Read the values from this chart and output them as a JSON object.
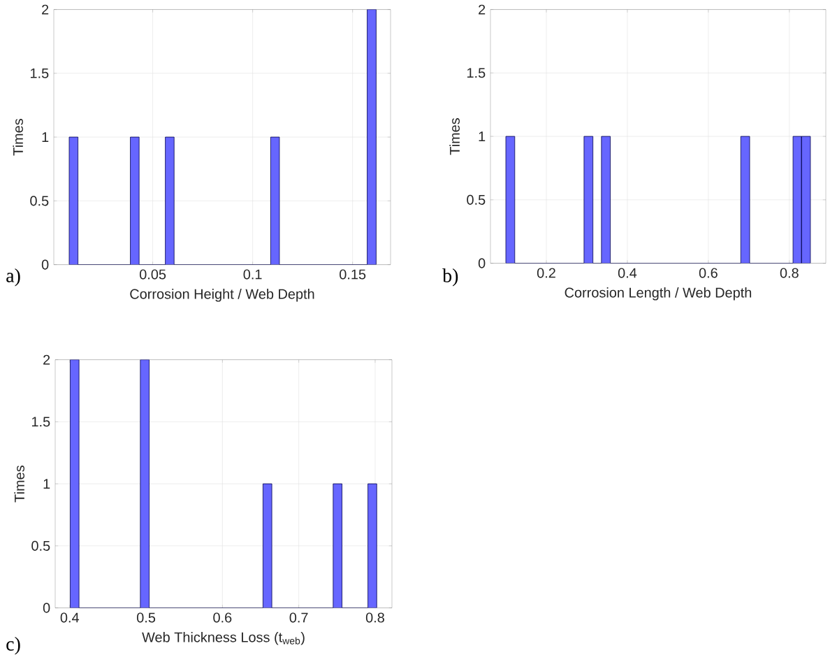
{
  "chart_data": [
    {
      "type": "histogram",
      "xlabel": "Corrosion Height / Web Depth",
      "ylabel": "Times",
      "annotations": [
        "a)"
      ],
      "color": "#6666ff",
      "bins": [
        0.0082,
        0.0126,
        0.0388,
        0.0432,
        0.0563,
        0.0607,
        0.109,
        0.1134,
        0.1573,
        0.1618
      ],
      "values": [
        1,
        0,
        1,
        0,
        1,
        0,
        1,
        0,
        2
      ],
      "xlim": [
        0.0005,
        0.169
      ],
      "xticks": [
        0.05,
        0.1,
        0.15
      ],
      "ylim": [
        0,
        2
      ],
      "yticks": [
        0,
        0.5,
        1,
        1.5,
        2
      ],
      "grid": true
    },
    {
      "type": "histogram",
      "xlabel": "Corrosion Length / Web Depth",
      "ylabel": "Times",
      "annotations": [
        "b)"
      ],
      "color": "#6666ff",
      "bins": [
        0.1,
        0.122,
        0.293,
        0.315,
        0.336,
        0.358,
        0.68,
        0.702,
        0.809,
        0.83,
        0.852
      ],
      "values": [
        1,
        0,
        1,
        0,
        1,
        0,
        1,
        0,
        1,
        1
      ],
      "xlim": [
        0.062,
        0.89
      ],
      "xticks": [
        0.2,
        0.4,
        0.6,
        0.8
      ],
      "ylim": [
        0,
        2
      ],
      "yticks": [
        0,
        0.5,
        1,
        1.5,
        2
      ],
      "grid": true
    },
    {
      "type": "histogram",
      "xlabel": "Web Thickness Loss (t$_{web}$)",
      "ylabel": "Times",
      "annotations": [
        "c)"
      ],
      "color": "#6666ff",
      "bins": [
        0.4006,
        0.4122,
        0.4925,
        0.5041,
        0.6531,
        0.6647,
        0.745,
        0.7566,
        0.7905,
        0.8021
      ],
      "values": [
        2,
        0,
        2,
        0,
        1,
        0,
        1,
        0,
        1
      ],
      "xlim": [
        0.381,
        0.822
      ],
      "xticks": [
        0.4,
        0.5,
        0.6,
        0.7,
        0.8
      ],
      "ylim": [
        0,
        2
      ],
      "yticks": [
        0,
        0.5,
        1,
        1.5,
        2
      ],
      "grid": true
    }
  ]
}
